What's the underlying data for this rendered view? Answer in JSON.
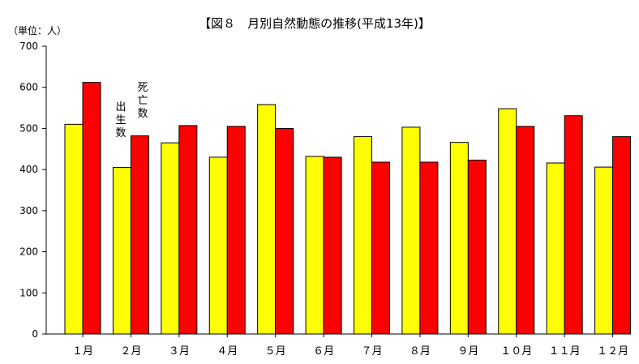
{
  "chart_data": {
    "type": "bar",
    "title": "【図８　月別自然動態の推移(平成13年)】",
    "unit_label": "（単位：人）",
    "categories": [
      "１月",
      "２月",
      "３月",
      "４月",
      "５月",
      "６月",
      "７月",
      "８月",
      "９月",
      "１０月",
      "１１月",
      "１２月"
    ],
    "series": [
      {
        "name": "出生数",
        "color": "#ffff00",
        "values": [
          510,
          405,
          465,
          430,
          558,
          432,
          480,
          503,
          466,
          548,
          416,
          406
        ]
      },
      {
        "name": "死亡数",
        "color": "#ff0000",
        "values": [
          612,
          482,
          507,
          505,
          500,
          430,
          418,
          418,
          423,
          505,
          531,
          480
        ]
      }
    ],
    "ylim": [
      0,
      700
    ],
    "yticks": [
      "0",
      "100",
      "200",
      "300",
      "400",
      "500",
      "600",
      "700"
    ],
    "legend": "inline-vertical-labels",
    "grid": false
  }
}
